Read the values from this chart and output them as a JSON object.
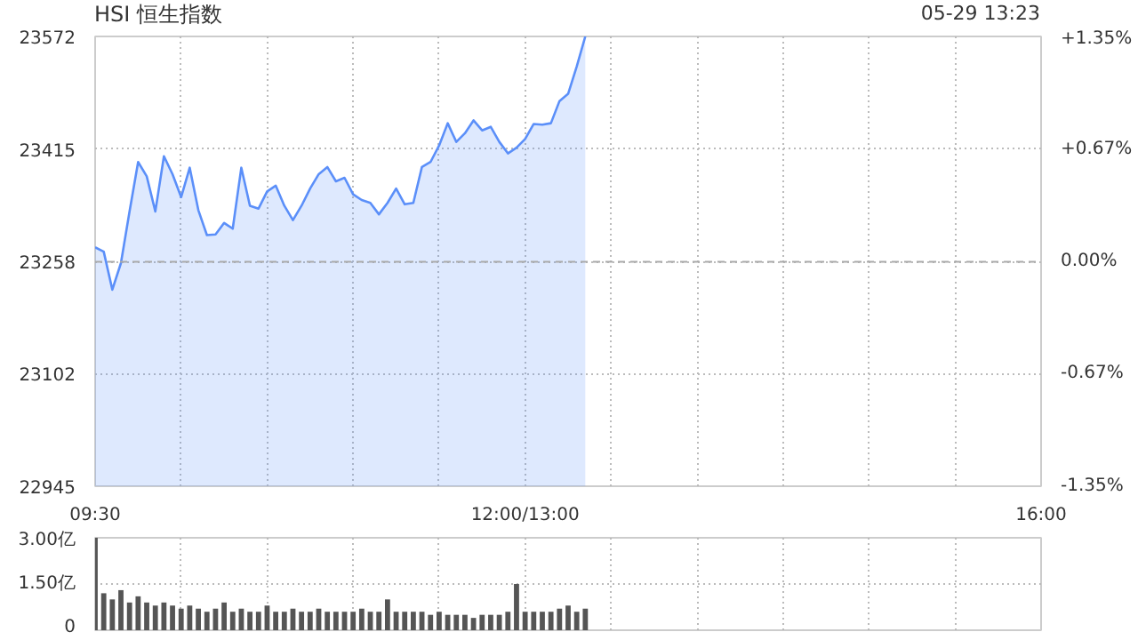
{
  "chart_data": [
    {
      "type": "area",
      "title": "HSI 恒生指数",
      "annotations": [
        "05-29 13:23"
      ],
      "categories": [
        "09:30",
        null,
        null,
        null,
        null,
        null,
        null,
        null,
        null,
        null,
        null,
        null,
        null,
        null,
        null,
        null,
        null,
        null,
        null,
        null,
        null,
        null,
        null,
        null,
        null,
        null,
        null,
        null,
        null,
        null,
        null,
        null,
        null,
        null,
        null,
        null,
        null,
        null,
        null,
        null,
        null,
        null,
        null,
        null,
        null,
        null,
        null,
        null,
        null,
        null,
        "12:00/13:00",
        null,
        null,
        null,
        null,
        null,
        null,
        null,
        null,
        null,
        null,
        null,
        null,
        null,
        null,
        null,
        null,
        null,
        null,
        null,
        null,
        null,
        null,
        null,
        null,
        null,
        null,
        null,
        null,
        null,
        null,
        null,
        null,
        null,
        null,
        null,
        null,
        null,
        null,
        null,
        null,
        null,
        null,
        null,
        null,
        null,
        null,
        null,
        null,
        null,
        null,
        null,
        null,
        null,
        null,
        null,
        null,
        null,
        null,
        null,
        "16:00"
      ],
      "series": [
        {
          "color": "#5b8ff9",
          "values": [
            23278,
            23272,
            23219,
            23256,
            23328,
            23397,
            23377,
            23328,
            23405,
            23380,
            23348,
            23389,
            23330,
            23295,
            23296,
            23312,
            23304,
            23389,
            23336,
            23332,
            23356,
            23364,
            23336,
            23316,
            23336,
            23360,
            23380,
            23390,
            23370,
            23375,
            23352,
            23344,
            23340,
            23324,
            23340,
            23360,
            23338,
            23340,
            23390,
            23397,
            23420,
            23451,
            23425,
            23437,
            23455,
            23441,
            23446,
            23425,
            23409,
            23417,
            23429,
            23450,
            23449,
            23451,
            23482,
            23492,
            23530,
            23572,
            null,
            null,
            null,
            null,
            null,
            null,
            null,
            null,
            null,
            null,
            null,
            null,
            null,
            null,
            null,
            null,
            null,
            null,
            null,
            null,
            null,
            null,
            null,
            null,
            null,
            null,
            null,
            null,
            null,
            null,
            null,
            null,
            null,
            null,
            null,
            null,
            null,
            null,
            null,
            null,
            null,
            null,
            null,
            null,
            null,
            null,
            null,
            null,
            null,
            null,
            null,
            null,
            null
          ]
        }
      ],
      "ylim": [
        22945,
        23572
      ],
      "yticks": [
        22945,
        23102,
        23258,
        23415,
        23572
      ],
      "y2lim": [
        -1.35,
        1.35
      ],
      "y2ticks": [
        {
          "value": -1.35,
          "label": "-1.35%"
        },
        {
          "value": -0.67,
          "label": "-0.67%"
        },
        {
          "value": 0,
          "label": "0.00%"
        },
        {
          "value": 0.67,
          "label": "+0.67%"
        },
        {
          "value": 1.35,
          "label": "+1.35%"
        }
      ],
      "ref_lines": [
        {
          "axis": "y",
          "value": 23258,
          "color": "#aaaaaa",
          "line_style": "dashed"
        }
      ],
      "grid": true
    },
    {
      "type": "bar",
      "tick_labels": "y",
      "color": "#555555",
      "categories": [
        null,
        null,
        null,
        null,
        null,
        null,
        null,
        null,
        null,
        null,
        null,
        null,
        null,
        null,
        null,
        null,
        null,
        null,
        null,
        null,
        null,
        null,
        null,
        null,
        null,
        null,
        null,
        null,
        null,
        null,
        null,
        null,
        null,
        null,
        null,
        null,
        null,
        null,
        null,
        null,
        null,
        null,
        null,
        null,
        null,
        null,
        null,
        null,
        null,
        null,
        null,
        null,
        null,
        null,
        null,
        null,
        null,
        null,
        null,
        null,
        null,
        null,
        null,
        null,
        null,
        null,
        null,
        null,
        null,
        null,
        null,
        null,
        null,
        null,
        null,
        null,
        null,
        null,
        null,
        null,
        null,
        null,
        null,
        null,
        null,
        null,
        null,
        null,
        null,
        null,
        null,
        null,
        null,
        null,
        null,
        null,
        null,
        null,
        null,
        null,
        null,
        null,
        null,
        null,
        null,
        null,
        null,
        null,
        null,
        null,
        null
      ],
      "values": [
        3.0,
        1.2,
        1.0,
        1.3,
        0.9,
        1.1,
        0.9,
        0.8,
        0.9,
        0.8,
        0.7,
        0.8,
        0.7,
        0.6,
        0.7,
        0.9,
        0.6,
        0.7,
        0.6,
        0.6,
        0.8,
        0.6,
        0.6,
        0.7,
        0.6,
        0.6,
        0.7,
        0.6,
        0.6,
        0.6,
        0.6,
        0.7,
        0.6,
        0.6,
        1.0,
        0.6,
        0.6,
        0.6,
        0.6,
        0.5,
        0.6,
        0.5,
        0.5,
        0.5,
        0.4,
        0.5,
        0.5,
        0.5,
        0.6,
        1.5,
        0.6,
        0.6,
        0.6,
        0.6,
        0.7,
        0.8,
        0.6,
        0.7,
        null,
        null,
        null,
        null,
        null,
        null,
        null,
        null,
        null,
        null,
        null,
        null,
        null,
        null,
        null,
        null,
        null,
        null,
        null,
        null,
        null,
        null,
        null,
        null,
        null,
        null,
        null,
        null,
        null,
        null,
        null,
        null,
        null,
        null,
        null,
        null,
        null,
        null,
        null,
        null,
        null,
        null,
        null,
        null,
        null,
        null,
        null,
        null,
        null,
        null,
        null,
        null,
        null
      ],
      "ylim": [
        0,
        3.0
      ],
      "yticks": [
        {
          "value": 0,
          "label": "0"
        },
        {
          "value": 1.5,
          "label": "1.50亿"
        },
        {
          "value": 3.0,
          "label": "3.00亿"
        }
      ],
      "grid": true
    }
  ]
}
